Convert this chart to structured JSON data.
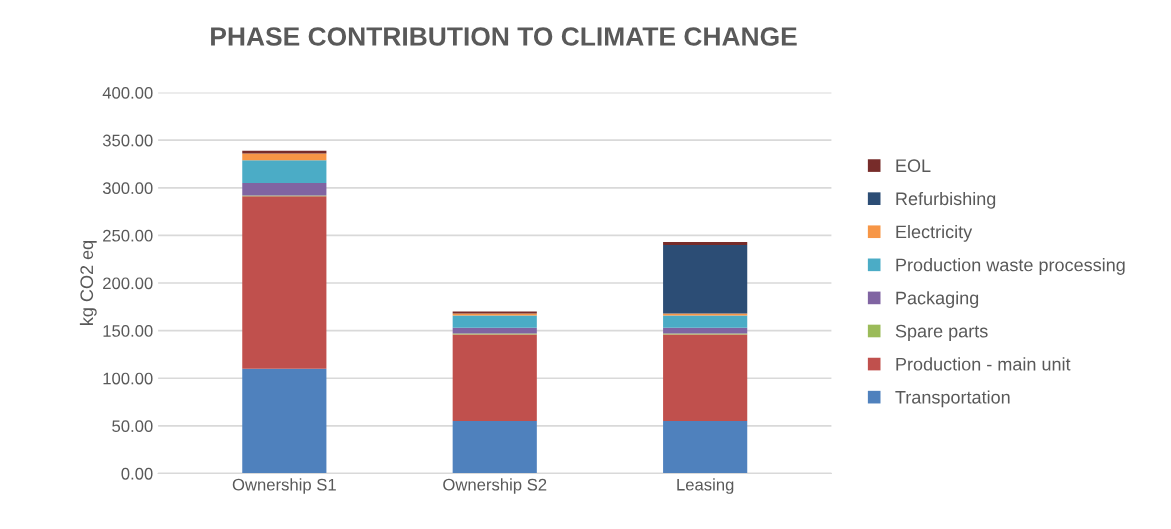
{
  "chart_data": {
    "type": "bar",
    "title": "PHASE CONTRIBUTION TO CLIMATE CHANGE",
    "ylabel": "kg CO2 eq",
    "categories": [
      "Ownership S1",
      "Ownership S2",
      "Leasing"
    ],
    "stacked": true,
    "ylim": [
      0,
      400
    ],
    "yticks": [
      {
        "value": 0,
        "label": "0.00"
      },
      {
        "value": 50,
        "label": "50.00"
      },
      {
        "value": 100,
        "label": "100.00"
      },
      {
        "value": 150,
        "label": "150.00"
      },
      {
        "value": 200,
        "label": "200.00"
      },
      {
        "value": 250,
        "label": "250.00"
      },
      {
        "value": 300,
        "label": "300.00"
      },
      {
        "value": 350,
        "label": "350.00"
      },
      {
        "value": 400,
        "label": "400.00"
      }
    ],
    "grid": "y",
    "legend": "right",
    "series": [
      {
        "name": "Transportation",
        "color": "#4f81bd",
        "values": [
          110,
          55,
          55
        ]
      },
      {
        "name": "Production - main unit",
        "color": "#c0504d",
        "values": [
          181,
          91,
          91
        ]
      },
      {
        "name": "Spare parts",
        "color": "#9bbb59",
        "values": [
          1,
          1,
          1
        ]
      },
      {
        "name": "Packaging",
        "color": "#8064a2",
        "values": [
          13,
          6,
          6
        ]
      },
      {
        "name": "Production waste processing",
        "color": "#4bacc6",
        "values": [
          24,
          13,
          13
        ]
      },
      {
        "name": "Electricity",
        "color": "#f79646",
        "values": [
          7,
          2,
          2
        ]
      },
      {
        "name": "Refurbishing",
        "color": "#2c4d75",
        "values": [
          0,
          0,
          72
        ]
      },
      {
        "name": "EOL",
        "color": "#772c2a",
        "values": [
          3,
          2,
          3
        ]
      }
    ]
  }
}
